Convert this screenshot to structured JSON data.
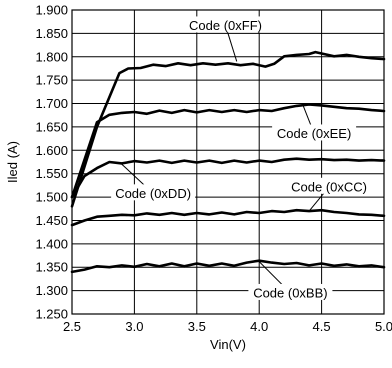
{
  "chart_data": {
    "type": "line",
    "title": "",
    "xlabel": "Vin(V)",
    "ylabel": "Iled (A)",
    "xlim": [
      2.5,
      5.0
    ],
    "ylim": [
      1.25,
      1.9
    ],
    "x_ticks": [
      2.5,
      3.0,
      3.5,
      4.0,
      4.5,
      5.0
    ],
    "x_tick_labels": [
      "2.5",
      "3.0",
      "3.5",
      "4.0",
      "4.5",
      "5.0"
    ],
    "y_ticks": [
      1.25,
      1.3,
      1.35,
      1.4,
      1.45,
      1.5,
      1.55,
      1.6,
      1.65,
      1.7,
      1.75,
      1.8,
      1.85,
      1.9
    ],
    "y_tick_labels": [
      "1.250",
      "1.300",
      "1.350",
      "1.400",
      "1.450",
      "1.500",
      "1.550",
      "1.600",
      "1.650",
      "1.700",
      "1.750",
      "1.800",
      "1.850",
      "1.900"
    ],
    "grid": true,
    "legend": "none",
    "series": [
      {
        "points": [
          [
            2.5,
            1.48
          ],
          [
            2.7,
            1.65
          ],
          [
            2.88,
            1.765
          ],
          [
            2.95,
            1.775
          ],
          [
            3.05,
            1.776
          ],
          [
            3.15,
            1.783
          ],
          [
            3.25,
            1.78
          ],
          [
            3.35,
            1.786
          ],
          [
            3.45,
            1.782
          ],
          [
            3.55,
            1.786
          ],
          [
            3.65,
            1.783
          ],
          [
            3.75,
            1.786
          ],
          [
            3.85,
            1.782
          ],
          [
            3.95,
            1.785
          ],
          [
            4.05,
            1.779
          ],
          [
            4.12,
            1.785
          ],
          [
            4.2,
            1.801
          ],
          [
            4.3,
            1.804
          ],
          [
            4.4,
            1.806
          ],
          [
            4.45,
            1.81
          ],
          [
            4.5,
            1.807
          ],
          [
            4.6,
            1.801
          ],
          [
            4.7,
            1.804
          ],
          [
            4.8,
            1.8
          ],
          [
            4.9,
            1.797
          ],
          [
            5.0,
            1.795
          ]
        ]
      },
      {
        "points": [
          [
            2.5,
            1.5
          ],
          [
            2.7,
            1.66
          ],
          [
            2.8,
            1.676
          ],
          [
            2.9,
            1.68
          ],
          [
            3.0,
            1.682
          ],
          [
            3.1,
            1.678
          ],
          [
            3.2,
            1.685
          ],
          [
            3.3,
            1.68
          ],
          [
            3.4,
            1.686
          ],
          [
            3.5,
            1.681
          ],
          [
            3.6,
            1.686
          ],
          [
            3.7,
            1.682
          ],
          [
            3.8,
            1.686
          ],
          [
            3.9,
            1.682
          ],
          [
            4.0,
            1.686
          ],
          [
            4.1,
            1.684
          ],
          [
            4.2,
            1.69
          ],
          [
            4.3,
            1.695
          ],
          [
            4.4,
            1.698
          ],
          [
            4.5,
            1.696
          ],
          [
            4.6,
            1.693
          ],
          [
            4.7,
            1.69
          ],
          [
            4.8,
            1.689
          ],
          [
            4.9,
            1.686
          ],
          [
            5.0,
            1.684
          ]
        ]
      },
      {
        "points": [
          [
            2.5,
            1.5
          ],
          [
            2.6,
            1.545
          ],
          [
            2.7,
            1.562
          ],
          [
            2.8,
            1.575
          ],
          [
            2.9,
            1.572
          ],
          [
            3.0,
            1.577
          ],
          [
            3.1,
            1.574
          ],
          [
            3.2,
            1.578
          ],
          [
            3.3,
            1.573
          ],
          [
            3.4,
            1.578
          ],
          [
            3.5,
            1.574
          ],
          [
            3.6,
            1.578
          ],
          [
            3.7,
            1.573
          ],
          [
            3.8,
            1.578
          ],
          [
            3.9,
            1.574
          ],
          [
            4.0,
            1.578
          ],
          [
            4.1,
            1.575
          ],
          [
            4.2,
            1.58
          ],
          [
            4.3,
            1.582
          ],
          [
            4.4,
            1.58
          ],
          [
            4.5,
            1.581
          ],
          [
            4.6,
            1.579
          ],
          [
            4.7,
            1.58
          ],
          [
            4.8,
            1.578
          ],
          [
            4.9,
            1.579
          ],
          [
            5.0,
            1.578
          ]
        ]
      },
      {
        "points": [
          [
            2.5,
            1.44
          ],
          [
            2.6,
            1.45
          ],
          [
            2.7,
            1.458
          ],
          [
            2.8,
            1.46
          ],
          [
            2.9,
            1.462
          ],
          [
            3.0,
            1.461
          ],
          [
            3.1,
            1.465
          ],
          [
            3.2,
            1.462
          ],
          [
            3.3,
            1.466
          ],
          [
            3.4,
            1.462
          ],
          [
            3.5,
            1.466
          ],
          [
            3.6,
            1.463
          ],
          [
            3.7,
            1.467
          ],
          [
            3.8,
            1.463
          ],
          [
            3.9,
            1.468
          ],
          [
            4.0,
            1.466
          ],
          [
            4.1,
            1.47
          ],
          [
            4.2,
            1.468
          ],
          [
            4.3,
            1.472
          ],
          [
            4.4,
            1.47
          ],
          [
            4.5,
            1.472
          ],
          [
            4.6,
            1.468
          ],
          [
            4.7,
            1.466
          ],
          [
            4.8,
            1.463
          ],
          [
            4.9,
            1.462
          ],
          [
            5.0,
            1.46
          ]
        ]
      },
      {
        "points": [
          [
            2.5,
            1.34
          ],
          [
            2.6,
            1.345
          ],
          [
            2.7,
            1.352
          ],
          [
            2.8,
            1.35
          ],
          [
            2.9,
            1.354
          ],
          [
            3.0,
            1.351
          ],
          [
            3.1,
            1.357
          ],
          [
            3.2,
            1.352
          ],
          [
            3.3,
            1.358
          ],
          [
            3.4,
            1.352
          ],
          [
            3.5,
            1.358
          ],
          [
            3.6,
            1.353
          ],
          [
            3.7,
            1.358
          ],
          [
            3.8,
            1.353
          ],
          [
            3.9,
            1.36
          ],
          [
            4.0,
            1.364
          ],
          [
            4.1,
            1.36
          ],
          [
            4.2,
            1.357
          ],
          [
            4.3,
            1.359
          ],
          [
            4.4,
            1.354
          ],
          [
            4.5,
            1.358
          ],
          [
            4.6,
            1.353
          ],
          [
            4.7,
            1.356
          ],
          [
            4.8,
            1.352
          ],
          [
            4.9,
            1.354
          ],
          [
            5.0,
            1.35
          ]
        ]
      }
    ],
    "annotations": [
      {
        "text": "Code (0xFF)",
        "x": 3.73,
        "y": 1.867,
        "target": [
          3.82,
          1.79
        ]
      },
      {
        "text": "Code (0xEE)",
        "x": 4.44,
        "y": 1.636,
        "target": [
          4.35,
          1.697
        ]
      },
      {
        "text": "Code (0xDD)",
        "x": 3.15,
        "y": 1.508,
        "target": [
          2.9,
          1.57
        ]
      },
      {
        "text": "Code (0xCC)",
        "x": 4.56,
        "y": 1.522,
        "target": [
          4.4,
          1.47
        ]
      },
      {
        "text": "Code (0xBB)",
        "x": 4.25,
        "y": 1.295,
        "target": [
          4.0,
          1.362
        ]
      }
    ]
  }
}
